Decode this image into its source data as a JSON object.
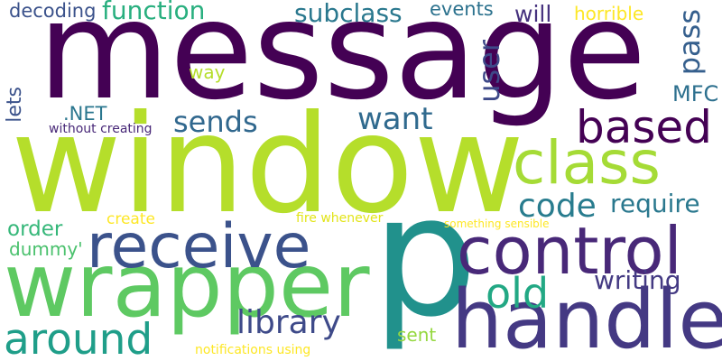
{
  "words": {
    "message": {
      "text": "message",
      "color": "#440154"
    },
    "window": {
      "text": "window",
      "color": "#b5de2b"
    },
    "p": {
      "text": "p",
      "color": "#21918c"
    },
    "wrapper": {
      "text": "wrapper",
      "color": "#5ec962"
    },
    "receive": {
      "text": "receive",
      "color": "#3b528b"
    },
    "control": {
      "text": "control",
      "color": "#482878"
    },
    "handle": {
      "text": "handle",
      "color": "#443983"
    },
    "class": {
      "text": "class",
      "color": "#a5db36"
    },
    "based": {
      "text": "based",
      "color": "#440154"
    },
    "around": {
      "text": "around",
      "color": "#1f9e89"
    },
    "old": {
      "text": "old",
      "color": "#22a884"
    },
    "library": {
      "text": "library",
      "color": "#3e4a89"
    },
    "code": {
      "text": "code",
      "color": "#287c8e"
    },
    "want": {
      "text": "want",
      "color": "#306a8e"
    },
    "sends": {
      "text": "sends",
      "color": "#31688e"
    },
    "subclass": {
      "text": "subclass",
      "color": "#2a788e"
    },
    "function": {
      "text": "function",
      "color": "#29af7f"
    },
    "decoding": {
      "text": "decoding",
      "color": "#3b528b"
    },
    "events": {
      "text": "events",
      "color": "#2c728e"
    },
    "will": {
      "text": "will",
      "color": "#46327e"
    },
    "horrible": {
      "text": "horrible",
      "color": "#fde725"
    },
    "user": {
      "text": "user",
      "color": "#3e4989"
    },
    "pass": {
      "text": "pass",
      "color": "#355f8d"
    },
    "mfc": {
      "text": "MFC",
      "color": "#2d708e"
    },
    "require": {
      "text": "require",
      "color": "#2a788e"
    },
    "writing": {
      "text": "writing",
      "color": "#443a83"
    },
    "way": {
      "text": "way",
      "color": "#b5de2b"
    },
    "net": {
      "text": ".NET",
      "color": "#2a768e"
    },
    "lets": {
      "text": "lets",
      "color": "#3b528b"
    },
    "without_creating": {
      "text": "without creating",
      "color": "#482878"
    },
    "order": {
      "text": "order",
      "color": "#35b779"
    },
    "dummy": {
      "text": "dummy'",
      "color": "#4ac16d"
    },
    "create": {
      "text": "create",
      "color": "#fde725"
    },
    "fire_whenever": {
      "text": "fire whenever",
      "color": "#e2e418"
    },
    "something_sensible": {
      "text": "something sensible",
      "color": "#fde725"
    },
    "sent": {
      "text": "sent",
      "color": "#95d840"
    },
    "notifications_using": {
      "text": "notifications using",
      "color": "#fde725"
    }
  }
}
